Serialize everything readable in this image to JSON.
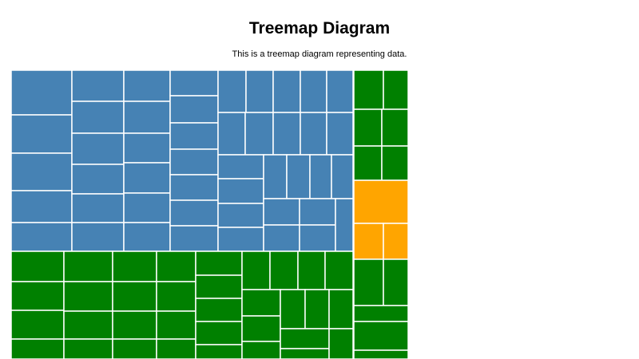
{
  "title": "Treemap Diagram",
  "subtitle": "This is a treemap diagram representing data.",
  "colors": {
    "blue": "#4682b4",
    "green": "#008000",
    "orange": "#ffa500"
  }
}
